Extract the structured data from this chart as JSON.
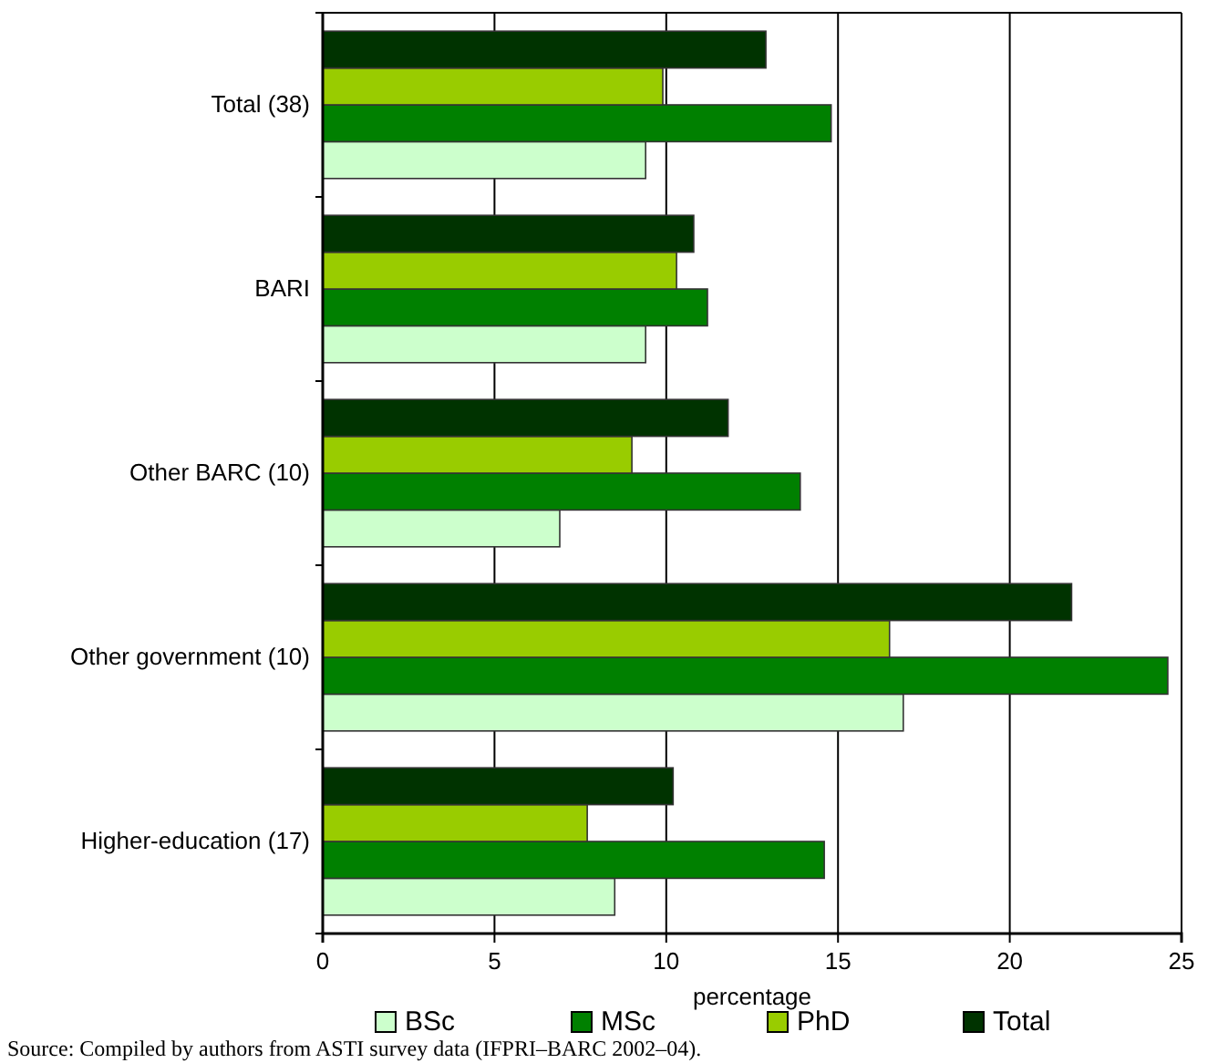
{
  "chart_data": {
    "type": "bar",
    "orientation": "horizontal",
    "xlabel": "percentage",
    "categories": [
      "Total (38)",
      "BARI",
      "Other BARC (10)",
      "Other government (10)",
      "Higher-education (17)"
    ],
    "series": [
      {
        "name": "BSc",
        "color": "#ccffcc",
        "values": [
          9.4,
          9.4,
          6.9,
          16.9,
          8.5
        ]
      },
      {
        "name": "MSc",
        "color": "#008000",
        "values": [
          14.8,
          11.2,
          13.9,
          24.6,
          14.6
        ]
      },
      {
        "name": "PhD",
        "color": "#99cc00",
        "values": [
          9.9,
          10.3,
          9.0,
          16.5,
          7.7
        ]
      },
      {
        "name": "Total",
        "color": "#003300",
        "values": [
          12.9,
          10.8,
          11.8,
          21.8,
          10.2
        ]
      }
    ],
    "xlim": [
      0,
      25
    ],
    "xticks": [
      0,
      5,
      10,
      15,
      20,
      25
    ],
    "grid": "x",
    "legend": "bottom",
    "annotations": [
      "Source: Compiled by authors from ASTI survey data (IFPRI–BARC 2002–04)."
    ]
  }
}
